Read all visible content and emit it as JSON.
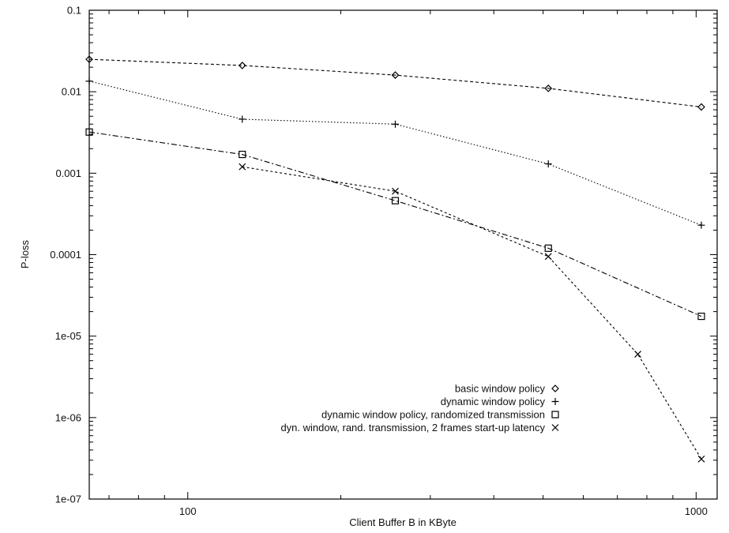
{
  "chart_data": {
    "type": "line",
    "xlabel": "Client Buffer B in KByte",
    "ylabel": "P-loss",
    "x_scale": "log",
    "y_scale": "log",
    "xlim": [
      64,
      1100
    ],
    "ylim": [
      1e-07,
      0.1
    ],
    "x_ticks": [
      {
        "value": 100,
        "label": "100"
      },
      {
        "value": 1000,
        "label": "1000"
      }
    ],
    "y_ticks": [
      {
        "value": 0.1,
        "label": "0.1"
      },
      {
        "value": 0.01,
        "label": "0.01"
      },
      {
        "value": 0.001,
        "label": "0.001"
      },
      {
        "value": 0.0001,
        "label": "0.0001"
      },
      {
        "value": 1e-05,
        "label": "1e-05"
      },
      {
        "value": 1e-06,
        "label": "1e-06"
      },
      {
        "value": 1e-07,
        "label": "1e-07"
      }
    ],
    "grid": false,
    "legend_position": "bottom-right",
    "series": [
      {
        "name": "basic window policy",
        "marker": "diamond",
        "dash": "4,3",
        "points": [
          [
            64,
            0.025
          ],
          [
            128,
            0.021
          ],
          [
            256,
            0.016
          ],
          [
            512,
            0.011
          ],
          [
            1024,
            0.0065
          ]
        ]
      },
      {
        "name": "dynamic window policy",
        "marker": "plus",
        "dash": "1.5,2.5",
        "points": [
          [
            64,
            0.0135
          ],
          [
            128,
            0.0046
          ],
          [
            256,
            0.004
          ],
          [
            512,
            0.0013
          ],
          [
            1024,
            0.00023
          ]
        ]
      },
      {
        "name": "dynamic window policy, randomized transmission",
        "marker": "square",
        "dash": "7,3,2,3",
        "points": [
          [
            64,
            0.0032
          ],
          [
            128,
            0.0017
          ],
          [
            256,
            0.00046
          ],
          [
            512,
            0.00012
          ],
          [
            1024,
            1.75e-05
          ]
        ]
      },
      {
        "name": "dyn. window, rand. transmission, 2 frames start-up latency",
        "marker": "cross",
        "dash": "3,3",
        "points": [
          [
            128,
            0.0012
          ],
          [
            256,
            0.0006
          ],
          [
            512,
            9.5e-05
          ],
          [
            768,
            6e-06
          ],
          [
            1024,
            3.1e-07
          ]
        ]
      }
    ]
  }
}
